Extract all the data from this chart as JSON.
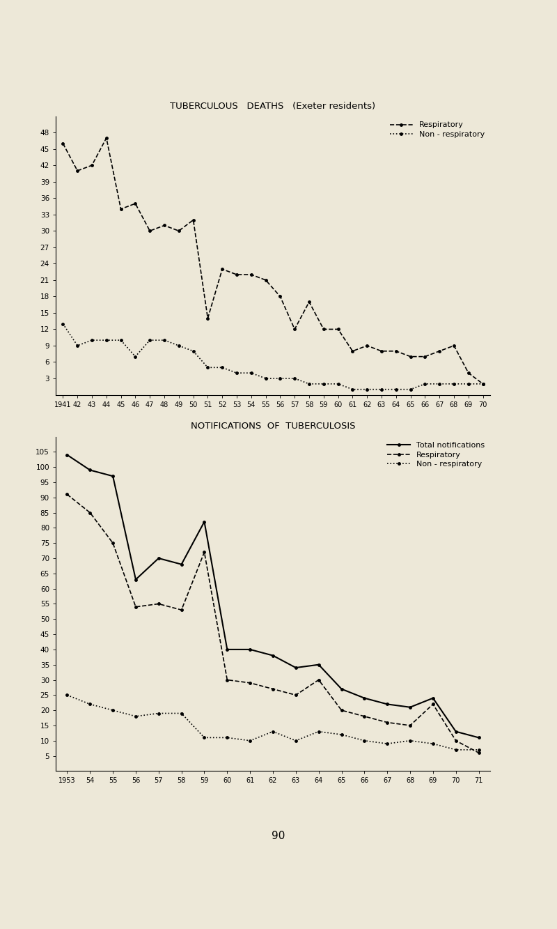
{
  "chart1": {
    "title": "TUBERCULOUS   DEATHS   (Exeter residents)",
    "years": [
      1941,
      42,
      43,
      44,
      45,
      46,
      47,
      48,
      49,
      50,
      51,
      52,
      53,
      54,
      55,
      56,
      57,
      58,
      59,
      60,
      61,
      62,
      63,
      64,
      65,
      66,
      67,
      68,
      69,
      70
    ],
    "respiratory": [
      46,
      41,
      42,
      47,
      34,
      35,
      30,
      31,
      30,
      32,
      14,
      23,
      22,
      22,
      21,
      18,
      12,
      17,
      12,
      12,
      8,
      9,
      8,
      8,
      7,
      7,
      8,
      9,
      4,
      2
    ],
    "non_respiratory": [
      13,
      9,
      10,
      10,
      10,
      7,
      10,
      10,
      9,
      8,
      5,
      5,
      4,
      4,
      3,
      3,
      3,
      2,
      2,
      2,
      1,
      1,
      1,
      1,
      1,
      2,
      2,
      2,
      2,
      2
    ],
    "ylim": [
      0,
      51
    ],
    "yticks": [
      3,
      6,
      9,
      12,
      15,
      18,
      21,
      24,
      27,
      30,
      33,
      36,
      39,
      42,
      45,
      48
    ],
    "legend_respiratory": "Respiratory",
    "legend_non_respiratory": "Non - respiratory"
  },
  "chart2": {
    "title": "NOTIFICATIONS  OF  TUBERCULOSIS",
    "years": [
      1953,
      54,
      55,
      56,
      57,
      58,
      59,
      60,
      61,
      62,
      63,
      64,
      65,
      66,
      67,
      68,
      69,
      70,
      71
    ],
    "total": [
      104,
      99,
      97,
      63,
      70,
      68,
      82,
      40,
      40,
      38,
      34,
      35,
      27,
      24,
      22,
      21,
      24,
      13,
      11
    ],
    "respiratory": [
      91,
      85,
      75,
      54,
      55,
      53,
      72,
      30,
      29,
      27,
      25,
      30,
      20,
      18,
      16,
      15,
      22,
      10,
      6
    ],
    "non_respiratory": [
      25,
      22,
      20,
      18,
      19,
      19,
      11,
      11,
      10,
      13,
      10,
      13,
      12,
      10,
      9,
      10,
      9,
      7,
      7
    ],
    "ylim": [
      0,
      110
    ],
    "yticks": [
      5,
      10,
      15,
      20,
      25,
      30,
      35,
      40,
      45,
      50,
      55,
      60,
      65,
      70,
      75,
      80,
      85,
      90,
      95,
      100,
      105
    ],
    "legend_total": "Total notifications",
    "legend_respiratory": "Respiratory",
    "legend_non_respiratory": "Non - respiratory"
  },
  "bg_color": "#ede8d8",
  "page_number": "90"
}
